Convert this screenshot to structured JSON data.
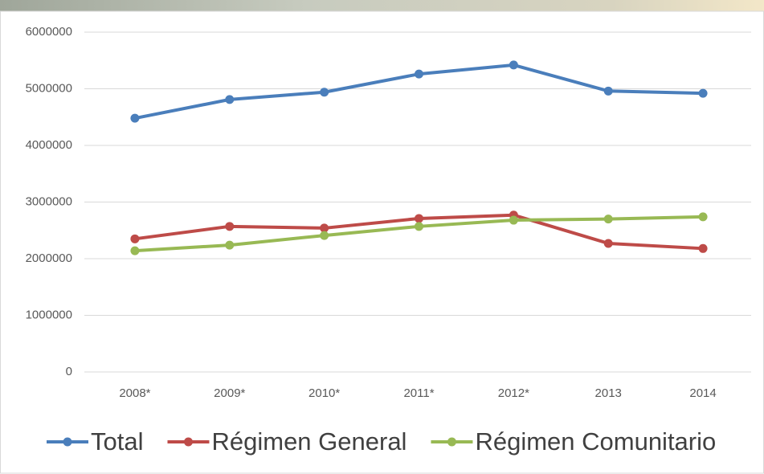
{
  "chart_data": {
    "type": "line",
    "categories": [
      "2008*",
      "2009*",
      "2010*",
      "2011*",
      "2012*",
      "2013",
      "2014"
    ],
    "series": [
      {
        "name": "Total",
        "color": "#4a7ebb",
        "values": [
          4480000,
          4810000,
          4940000,
          5260000,
          5420000,
          4960000,
          4920000
        ]
      },
      {
        "name": "Régimen General",
        "color": "#be4b48",
        "values": [
          2350000,
          2570000,
          2540000,
          2710000,
          2770000,
          2270000,
          2180000
        ]
      },
      {
        "name": "Régimen Comunitario",
        "color": "#98b954",
        "values": [
          2140000,
          2240000,
          2410000,
          2570000,
          2680000,
          2700000,
          2740000
        ]
      }
    ],
    "ylim": [
      0,
      6000000
    ],
    "yticks": [
      0,
      1000000,
      2000000,
      3000000,
      4000000,
      5000000,
      6000000
    ],
    "grid": true,
    "legend": "bottom"
  }
}
